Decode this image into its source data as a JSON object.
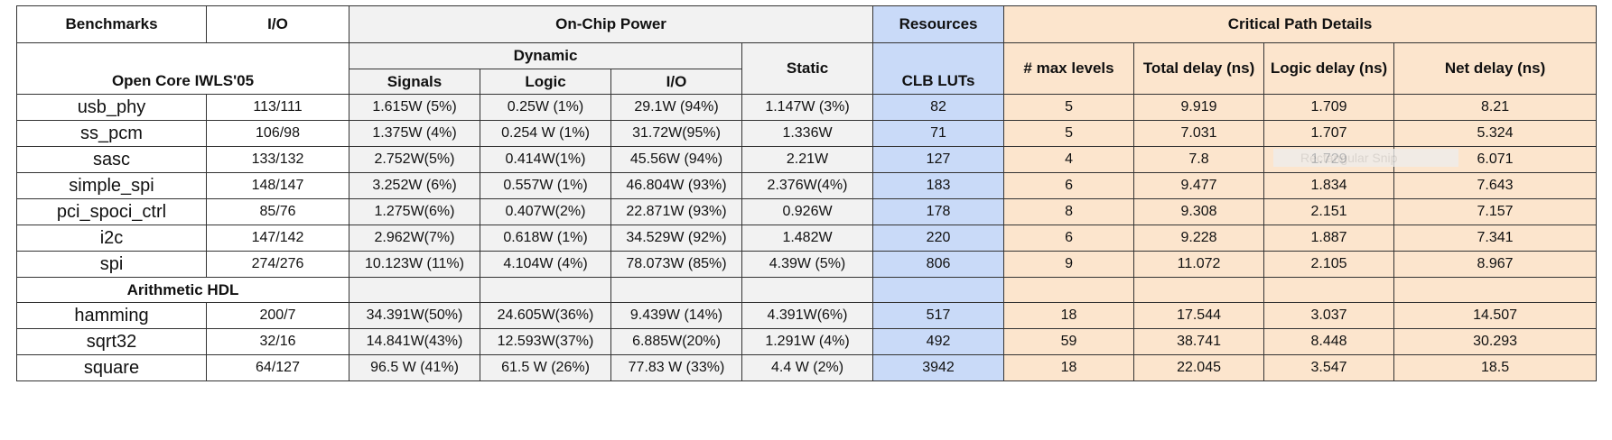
{
  "headers": {
    "benchmarks": "Benchmarks",
    "io": "I/O",
    "on_chip_power": "On-Chip Power",
    "resources": "Resources",
    "critical_path": "Critical Path Details",
    "dynamic": "Dynamic",
    "static": "Static",
    "signals": "Signals",
    "logic": "Logic",
    "io_power": "I/O",
    "clb_luts": "CLB LUTs",
    "max_levels": "# max levels",
    "total_delay": "Total delay (ns)",
    "logic_delay": "Logic delay (ns)",
    "net_delay": "Net delay (ns)"
  },
  "group1_label": "Open Core IWLS'05",
  "group2_label": "Arithmetic HDL",
  "group1_rows": [
    [
      "usb_phy",
      "113/111",
      "1.615W (5%)",
      "0.25W (1%)",
      "29.1W (94%)",
      "1.147W (3%)",
      "82",
      "5",
      "9.919",
      "1.709",
      "8.21"
    ],
    [
      "ss_pcm",
      "106/98",
      "1.375W (4%)",
      "0.254 W (1%)",
      "31.72W(95%)",
      "1.336W",
      "71",
      "5",
      "7.031",
      "1.707",
      "5.324"
    ],
    [
      "sasc",
      "133/132",
      "2.752W(5%)",
      "0.414W(1%)",
      "45.56W (94%)",
      "2.21W",
      "127",
      "4",
      "7.8",
      "1.729",
      "6.071"
    ],
    [
      "simple_spi",
      "148/147",
      "3.252W (6%)",
      "0.557W (1%)",
      "46.804W (93%)",
      "2.376W(4%)",
      "183",
      "6",
      "9.477",
      "1.834",
      "7.643"
    ],
    [
      "pci_spoci_ctrl",
      "85/76",
      "1.275W(6%)",
      "0.407W(2%)",
      "22.871W (93%)",
      "0.926W",
      "178",
      "8",
      "9.308",
      "2.151",
      "7.157"
    ],
    [
      "i2c",
      "147/142",
      "2.962W(7%)",
      "0.618W (1%)",
      "34.529W (92%)",
      "1.482W",
      "220",
      "6",
      "9.228",
      "1.887",
      "7.341"
    ],
    [
      "spi",
      "274/276",
      "10.123W (11%)",
      "4.104W (4%)",
      "78.073W (85%)",
      "4.39W (5%)",
      "806",
      "9",
      "11.072",
      "2.105",
      "8.967"
    ]
  ],
  "group2_rows": [
    [
      "hamming",
      "200/7",
      "34.391W(50%)",
      "24.605W(36%)",
      "9.439W (14%)",
      "4.391W(6%)",
      "517",
      "18",
      "17.544",
      "3.037",
      "14.507"
    ],
    [
      "sqrt32",
      "32/16",
      "14.841W(43%)",
      "12.593W(37%)",
      "6.885W(20%)",
      "1.291W (4%)",
      "492",
      "59",
      "38.741",
      "8.448",
      "30.293"
    ],
    [
      "square",
      "64/127",
      "96.5 W (41%)",
      "61.5 W (26%)",
      "77.83 W (33%)",
      "4.4 W (2%)",
      "3942",
      "18",
      "22.045",
      "3.547",
      "18.5"
    ]
  ],
  "watermark_text": "Rectangular Snip"
}
